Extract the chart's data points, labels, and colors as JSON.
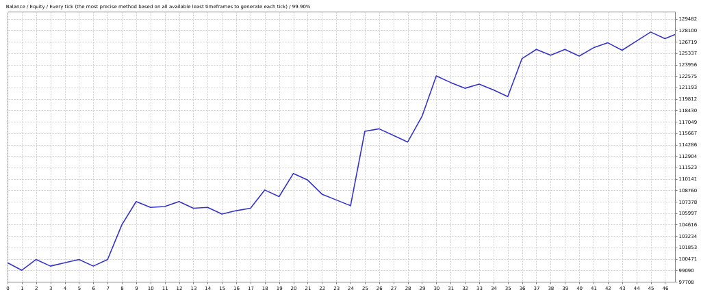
{
  "chart_data": {
    "type": "line",
    "title": "Balance / Equity / Every tick (the most precise method based on all available least timeframes to generate each tick) / 99.90%",
    "x": [
      0,
      1,
      2,
      3,
      4,
      5,
      6,
      7,
      8,
      9,
      10,
      11,
      12,
      13,
      14,
      15,
      16,
      17,
      18,
      19,
      20,
      21,
      22,
      23,
      24,
      25,
      26,
      27,
      28,
      29,
      30,
      31,
      32,
      33,
      34,
      35,
      36,
      37,
      38,
      39,
      40,
      41,
      42,
      43,
      44,
      45,
      46,
      46.7
    ],
    "series": [
      {
        "color": "#3333cc",
        "values": [
          100000,
          99100,
          100400,
          99600,
          100000,
          100400,
          99600,
          100400,
          104600,
          107400,
          106700,
          106800,
          107400,
          106600,
          106700,
          105900,
          106300,
          106600,
          108800,
          108000,
          110800,
          110000,
          108300,
          107600,
          106900,
          115900,
          116200,
          115400,
          114600,
          117700,
          122600,
          121800,
          121100,
          121600,
          120900,
          120100,
          124700,
          125800,
          125100,
          125800,
          125000,
          126000,
          126600,
          125700,
          126800,
          127900,
          127100,
          127600
        ]
      }
    ],
    "xlim": [
      0,
      46.7
    ],
    "xticks": [
      0,
      1,
      2,
      3,
      4,
      5,
      6,
      7,
      8,
      9,
      10,
      11,
      12,
      13,
      14,
      15,
      16,
      17,
      18,
      19,
      20,
      21,
      22,
      23,
      24,
      25,
      26,
      27,
      28,
      29,
      30,
      31,
      32,
      33,
      34,
      35,
      36,
      37,
      38,
      39,
      40,
      41,
      42,
      43,
      44,
      45,
      46
    ],
    "ylim": [
      97708,
      130370
    ],
    "yticks": [
      97708,
      99090,
      100471,
      101853,
      103234,
      104616,
      105997,
      107378,
      108760,
      110141,
      111523,
      112904,
      114286,
      115667,
      117049,
      118430,
      119812,
      121193,
      122575,
      123956,
      125337,
      126719,
      128100,
      129482
    ],
    "grid": true,
    "line_style": "solid",
    "marker": "none",
    "legend": false
  }
}
